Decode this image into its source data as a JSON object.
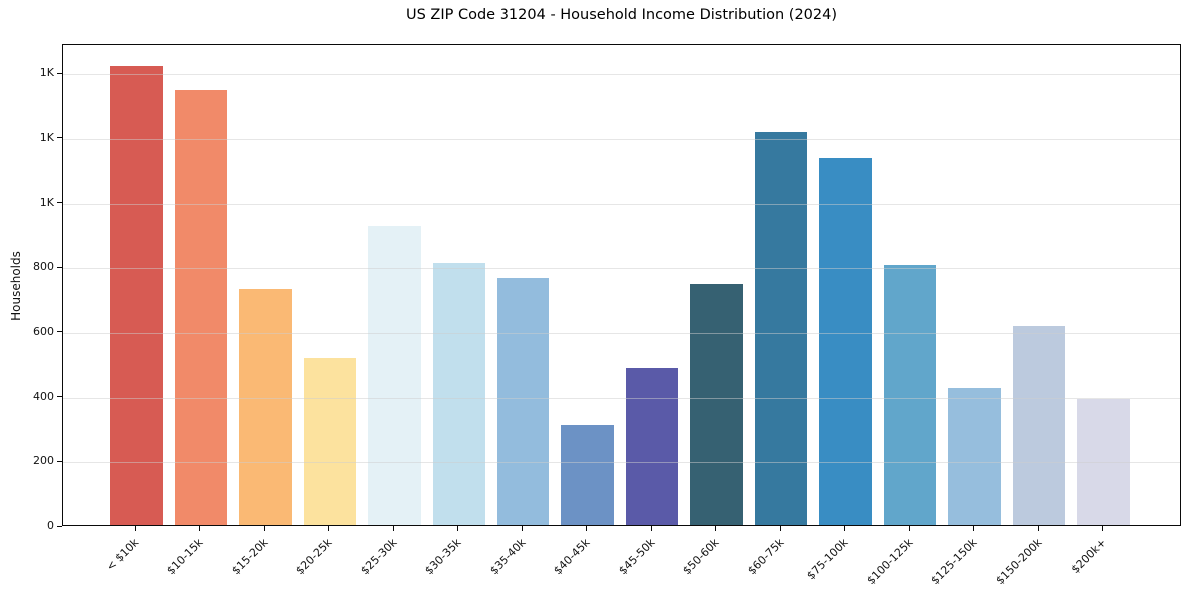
{
  "chart_data": {
    "type": "bar",
    "title": "US ZIP Code 31204 - Household Income Distribution (2024)",
    "xlabel": "",
    "ylabel": "Households",
    "categories": [
      "< $10k",
      "$10-15k",
      "$15-20k",
      "$20-25k",
      "$25-30k",
      "$30-35k",
      "$35-40k",
      "$40-45k",
      "$45-50k",
      "$50-60k",
      "$60-75k",
      "$75-100k",
      "$100-125k",
      "$125-150k",
      "$150-200k",
      "$200k+"
    ],
    "values": [
      1420,
      1345,
      730,
      515,
      925,
      810,
      765,
      310,
      485,
      745,
      1215,
      1135,
      805,
      425,
      615,
      390
    ],
    "bar_colors": [
      "#d75b53",
      "#f18a69",
      "#fab974",
      "#fce29e",
      "#e4f1f6",
      "#c1dfed",
      "#93bcdd",
      "#6c92c5",
      "#5a5aa8",
      "#366172",
      "#36799f",
      "#398dc3",
      "#61a6cb",
      "#96bedd",
      "#bccade",
      "#d8d9e8"
    ],
    "ylim": [
      0,
      1490
    ],
    "yticks": {
      "values": [
        0,
        200,
        400,
        600,
        800,
        1000,
        1200,
        1400
      ],
      "labels": [
        "0",
        "200",
        "400",
        "600",
        "800",
        "1K",
        "1K",
        "1K"
      ]
    },
    "grid": "horizontal",
    "legend_position": "none"
  },
  "colors": {
    "spine": "#0a0a0a",
    "grid": "#cdcdcd",
    "text": "#111111",
    "background": "#ffffff"
  }
}
